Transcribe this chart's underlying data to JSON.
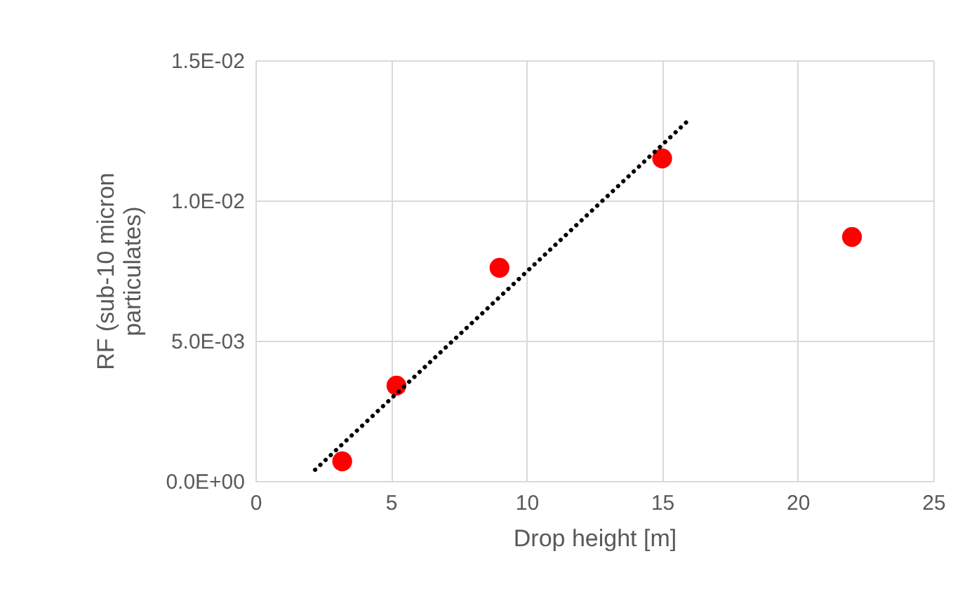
{
  "chart_data": {
    "type": "scatter",
    "xlabel": "Drop height [m]",
    "ylabel": "RF (sub-10 micron\nparticulates)",
    "xlim": [
      0,
      25
    ],
    "xticks": [
      0,
      5,
      10,
      15,
      20,
      25
    ],
    "ylim": [
      0,
      0.015
    ],
    "yticks": [
      {
        "value": 0,
        "label": "0.0E+00"
      },
      {
        "value": 0.005,
        "label": "5.0E-03"
      },
      {
        "value": 0.01,
        "label": "1.0E-02"
      },
      {
        "value": 0.015,
        "label": "1.5E-02"
      }
    ],
    "grid": true,
    "series": [
      {
        "marker": "circle",
        "color": "#ff0000",
        "x": [
          3.2,
          5.2,
          9.0,
          15.0,
          22.0
        ],
        "values": [
          0.0007,
          0.0034,
          0.0076,
          0.0115,
          0.0087
        ]
      },
      {
        "type": "line",
        "marker": "none",
        "color": "#000000",
        "line_style": "dotted",
        "x": [
          2.2,
          15.9
        ],
        "values": [
          0.0004,
          0.0128
        ]
      }
    ]
  }
}
